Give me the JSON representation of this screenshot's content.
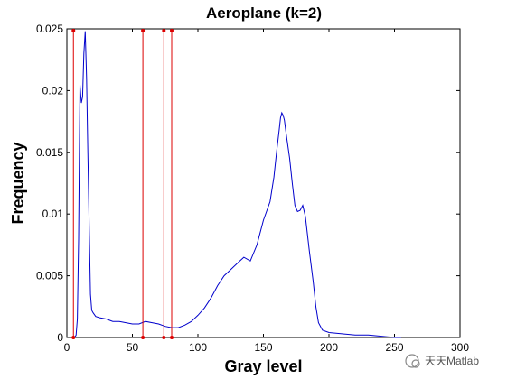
{
  "chart_data": {
    "type": "line",
    "title": "Aeroplane (k=2)",
    "xlabel": "Gray level",
    "ylabel": "Frequency",
    "xlim": [
      0,
      300
    ],
    "ylim": [
      0,
      0.025
    ],
    "xticks": [
      0,
      50,
      100,
      150,
      200,
      250,
      300
    ],
    "yticks": [
      0,
      0.005,
      0.01,
      0.015,
      0.02,
      0.025
    ],
    "xtick_labels": [
      "0",
      "50",
      "100",
      "150",
      "200",
      "250",
      "300"
    ],
    "ytick_labels": [
      "0",
      "0.005",
      "0.01",
      "0.015",
      "0.02",
      "0.025"
    ],
    "grid": false,
    "series": [
      {
        "color": "#0000cc",
        "x": [
          5,
          6,
          7,
          8,
          9,
          10,
          11,
          12,
          13,
          14,
          15,
          16,
          17,
          18,
          19,
          20,
          22,
          25,
          30,
          35,
          40,
          45,
          50,
          55,
          60,
          65,
          70,
          75,
          80,
          85,
          90,
          95,
          100,
          105,
          110,
          115,
          120,
          125,
          130,
          135,
          140,
          145,
          150,
          155,
          158,
          160,
          162,
          163,
          164,
          165,
          166,
          167,
          168,
          170,
          172,
          174,
          176,
          178,
          180,
          182,
          185,
          188,
          190,
          192,
          195,
          200,
          210,
          220,
          230,
          240,
          250,
          252,
          255
        ],
        "y": [
          0,
          0,
          0.0002,
          0.0015,
          0.008,
          0.0205,
          0.019,
          0.0195,
          0.023,
          0.0248,
          0.021,
          0.015,
          0.009,
          0.0035,
          0.0022,
          0.002,
          0.0017,
          0.0016,
          0.0015,
          0.0013,
          0.0013,
          0.0012,
          0.0011,
          0.0011,
          0.0013,
          0.0012,
          0.0011,
          0.0009,
          0.0008,
          0.0008,
          0.001,
          0.0013,
          0.0018,
          0.0024,
          0.0032,
          0.0042,
          0.005,
          0.0055,
          0.006,
          0.0065,
          0.0062,
          0.0075,
          0.0095,
          0.011,
          0.013,
          0.015,
          0.0168,
          0.0178,
          0.0182,
          0.018,
          0.0176,
          0.0168,
          0.016,
          0.0145,
          0.0125,
          0.0107,
          0.0102,
          0.0103,
          0.0107,
          0.0098,
          0.007,
          0.0045,
          0.0025,
          0.0012,
          0.0006,
          0.0004,
          0.0003,
          0.0002,
          0.0002,
          0.0001,
          0,
          0,
          0
        ]
      }
    ],
    "threshold_lines": {
      "color": "#dd0000",
      "x": [
        5,
        58,
        74,
        80
      ]
    }
  },
  "watermark": {
    "text": "天天Matlab"
  }
}
